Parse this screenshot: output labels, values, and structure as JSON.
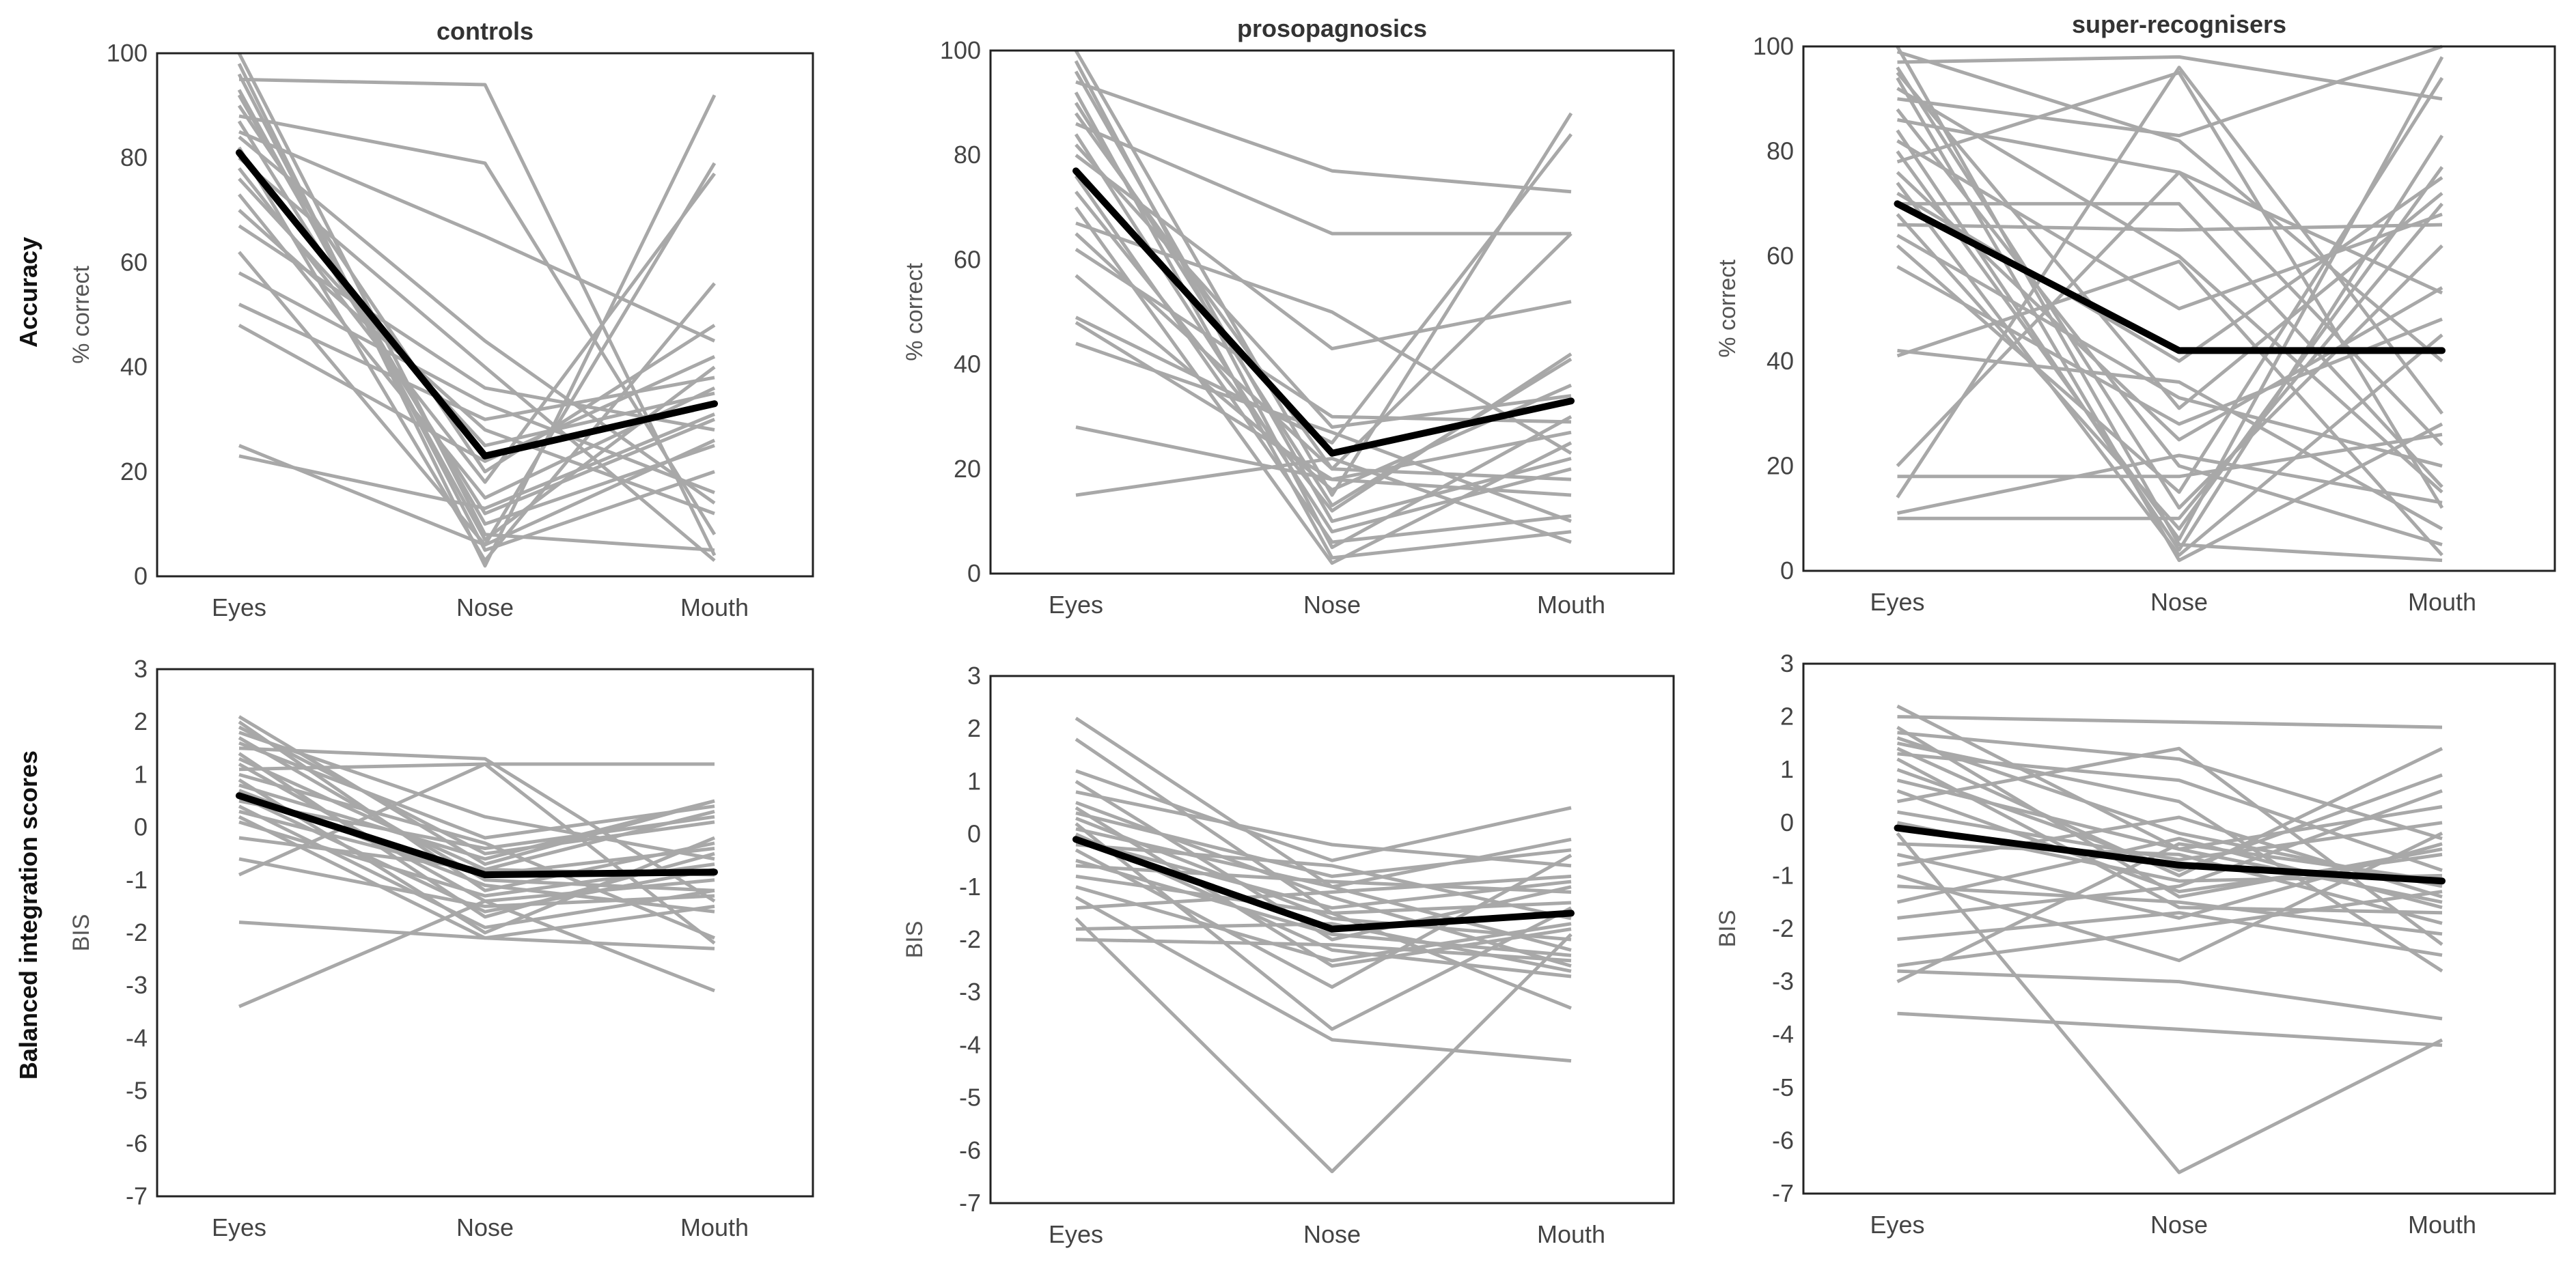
{
  "figure": {
    "row_labels": [
      "Accuracy",
      "Balanced integration scores"
    ],
    "colors": {
      "individual": "#a8a8a8",
      "mean": "#000000",
      "frame": "#222222"
    }
  },
  "chart_data": [
    {
      "type": "line",
      "group": "controls",
      "metric": "accuracy",
      "title": "controls",
      "xlabel": "",
      "ylabel": "% correct",
      "categories": [
        "Eyes",
        "Nose",
        "Mouth"
      ],
      "ylim": [
        0,
        100
      ],
      "yticks": [
        "0",
        "20",
        "40",
        "60",
        "80",
        "100"
      ],
      "mean": [
        81,
        23,
        33
      ],
      "individuals": [
        [
          100,
          8,
          5
        ],
        [
          98,
          2,
          92
        ],
        [
          96,
          5,
          20
        ],
        [
          95,
          94,
          4
        ],
        [
          93,
          7,
          40
        ],
        [
          92,
          10,
          25
        ],
        [
          90,
          20,
          48
        ],
        [
          88,
          79,
          8
        ],
        [
          87,
          12,
          30
        ],
        [
          85,
          65,
          45
        ],
        [
          84,
          45,
          14
        ],
        [
          82,
          3,
          56
        ],
        [
          80,
          40,
          3
        ],
        [
          78,
          18,
          77
        ],
        [
          76,
          25,
          35
        ],
        [
          73,
          15,
          36
        ],
        [
          70,
          28,
          12
        ],
        [
          67,
          36,
          28
        ],
        [
          62,
          6,
          79
        ],
        [
          58,
          33,
          16
        ],
        [
          52,
          30,
          38
        ],
        [
          48,
          22,
          42
        ],
        [
          25,
          6,
          26
        ],
        [
          23,
          13,
          31
        ]
      ]
    },
    {
      "type": "line",
      "group": "prosopagnosics",
      "metric": "accuracy",
      "title": "prosopagnosics",
      "xlabel": "",
      "ylabel": "% correct",
      "categories": [
        "Eyes",
        "Nose",
        "Mouth"
      ],
      "ylim": [
        0,
        100
      ],
      "yticks": [
        "0",
        "20",
        "40",
        "60",
        "80",
        "100"
      ],
      "mean": [
        77,
        23,
        33
      ],
      "individuals": [
        [
          100,
          15,
          88
        ],
        [
          98,
          5,
          30
        ],
        [
          96,
          10,
          22
        ],
        [
          94,
          77,
          73
        ],
        [
          92,
          3,
          8
        ],
        [
          90,
          13,
          41
        ],
        [
          88,
          20,
          65
        ],
        [
          86,
          65,
          65
        ],
        [
          84,
          8,
          20
        ],
        [
          82,
          28,
          34
        ],
        [
          80,
          43,
          52
        ],
        [
          76,
          6,
          11
        ],
        [
          73,
          12,
          42
        ],
        [
          70,
          2,
          25
        ],
        [
          67,
          50,
          23
        ],
        [
          65,
          20,
          18
        ],
        [
          62,
          30,
          29
        ],
        [
          57,
          16,
          36
        ],
        [
          49,
          25,
          84
        ],
        [
          48,
          18,
          15
        ],
        [
          44,
          27,
          10
        ],
        [
          28,
          18,
          27
        ],
        [
          15,
          22,
          6
        ]
      ]
    },
    {
      "type": "line",
      "group": "super-recognisers",
      "metric": "accuracy",
      "title": "super-recognisers",
      "xlabel": "",
      "ylabel": "% correct",
      "categories": [
        "Eyes",
        "Nose",
        "Mouth"
      ],
      "ylim": [
        0,
        100
      ],
      "yticks": [
        "0",
        "20",
        "40",
        "60",
        "80",
        "100"
      ],
      "mean": [
        70,
        42,
        42
      ],
      "individuals": [
        [
          100,
          5,
          2
        ],
        [
          99,
          82,
          40
        ],
        [
          97,
          98,
          90
        ],
        [
          96,
          12,
          62
        ],
        [
          95,
          31,
          72
        ],
        [
          94,
          2,
          28
        ],
        [
          92,
          60,
          15
        ],
        [
          90,
          83,
          100
        ],
        [
          88,
          20,
          5
        ],
        [
          86,
          76,
          24
        ],
        [
          84,
          4,
          83
        ],
        [
          82,
          50,
          68
        ],
        [
          80,
          6,
          98
        ],
        [
          78,
          95,
          12
        ],
        [
          76,
          25,
          54
        ],
        [
          74,
          3,
          45
        ],
        [
          72,
          40,
          75
        ],
        [
          70,
          70,
          16
        ],
        [
          68,
          8,
          77
        ],
        [
          66,
          65,
          66
        ],
        [
          64,
          33,
          20
        ],
        [
          62,
          15,
          94
        ],
        [
          58,
          28,
          48
        ],
        [
          42,
          36,
          8
        ],
        [
          41,
          59,
          3
        ],
        [
          20,
          76,
          53
        ],
        [
          18,
          18,
          26
        ],
        [
          14,
          96,
          30
        ],
        [
          11,
          22,
          13
        ],
        [
          10,
          10,
          70
        ]
      ]
    },
    {
      "type": "line",
      "group": "controls",
      "metric": "balanced integration scores",
      "title": "",
      "xlabel": "",
      "ylabel": "BIS",
      "categories": [
        "Eyes",
        "Nose",
        "Mouth"
      ],
      "ylim": [
        -7,
        3
      ],
      "yticks": [
        "-7",
        "-6",
        "-5",
        "-4",
        "-3",
        "-2",
        "-1",
        "0",
        "1",
        "2",
        "3"
      ],
      "mean": [
        0.6,
        -0.9,
        -0.85
      ],
      "individuals": [
        [
          2.1,
          -0.7,
          0.5
        ],
        [
          2.0,
          -1.2,
          -0.3
        ],
        [
          1.9,
          -0.5,
          0.1
        ],
        [
          1.8,
          0.2,
          -0.6
        ],
        [
          1.7,
          -1.0,
          -1.2
        ],
        [
          1.6,
          -0.2,
          0.4
        ],
        [
          1.5,
          1.3,
          -1.4
        ],
        [
          1.4,
          -1.7,
          -0.5
        ],
        [
          1.3,
          -0.8,
          0.3
        ],
        [
          1.2,
          -1.4,
          -1.0
        ],
        [
          1.1,
          1.2,
          1.2
        ],
        [
          1.0,
          -0.3,
          -2.1
        ],
        [
          0.9,
          -2.0,
          -0.2
        ],
        [
          0.8,
          -0.6,
          0.5
        ],
        [
          0.7,
          -1.1,
          -1.6
        ],
        [
          0.6,
          -1.6,
          -0.8
        ],
        [
          0.5,
          -0.4,
          0.2
        ],
        [
          0.4,
          -1.9,
          -1.2
        ],
        [
          0.3,
          -0.9,
          -0.4
        ],
        [
          0.2,
          -2.1,
          -1.5
        ],
        [
          0.1,
          -1.3,
          -0.7
        ],
        [
          -0.2,
          -0.8,
          -0.9
        ],
        [
          -0.6,
          -1.5,
          -1.3
        ],
        [
          -0.9,
          1.2,
          -2.2
        ],
        [
          -1.8,
          -2.1,
          -2.3
        ],
        [
          -3.4,
          -1.4,
          -3.1
        ]
      ]
    },
    {
      "type": "line",
      "group": "prosopagnosics",
      "metric": "balanced integration scores",
      "title": "",
      "xlabel": "",
      "ylabel": "BIS",
      "categories": [
        "Eyes",
        "Nose",
        "Mouth"
      ],
      "ylim": [
        -7,
        3
      ],
      "yticks": [
        "-7",
        "-6",
        "-5",
        "-4",
        "-3",
        "-2",
        "-1",
        "0",
        "1",
        "2",
        "3"
      ],
      "mean": [
        -0.1,
        -1.8,
        -1.5
      ],
      "individuals": [
        [
          2.2,
          -1.0,
          -2.2
        ],
        [
          1.8,
          -1.5,
          -1.3
        ],
        [
          1.2,
          -0.5,
          0.5
        ],
        [
          1.0,
          -2.0,
          -1.0
        ],
        [
          0.8,
          -0.2,
          -0.6
        ],
        [
          0.6,
          -1.2,
          -2.5
        ],
        [
          0.5,
          -2.5,
          -1.8
        ],
        [
          0.4,
          -0.8,
          -0.3
        ],
        [
          0.3,
          -1.6,
          -2.0
        ],
        [
          0.2,
          -3.7,
          -1.4
        ],
        [
          0.1,
          -1.0,
          -0.1
        ],
        [
          0.0,
          -2.2,
          -2.7
        ],
        [
          -0.1,
          -1.4,
          -0.9
        ],
        [
          -0.2,
          -0.6,
          -1.6
        ],
        [
          -0.3,
          -2.9,
          -0.4
        ],
        [
          -0.5,
          -1.9,
          -2.3
        ],
        [
          -0.6,
          -0.9,
          -1.1
        ],
        [
          -0.8,
          -1.5,
          -3.3
        ],
        [
          -1.0,
          -2.4,
          -1.7
        ],
        [
          -1.2,
          -3.9,
          -4.3
        ],
        [
          -1.4,
          -1.1,
          -0.8
        ],
        [
          -1.6,
          -6.4,
          -1.9
        ],
        [
          -1.8,
          -1.7,
          -2.6
        ],
        [
          -2.0,
          -2.1,
          -2.4
        ]
      ]
    },
    {
      "type": "line",
      "group": "super-recognisers",
      "metric": "balanced integration scores",
      "title": "",
      "xlabel": "",
      "ylabel": "BIS",
      "categories": [
        "Eyes",
        "Nose",
        "Mouth"
      ],
      "ylim": [
        -7,
        3
      ],
      "yticks": [
        "-7",
        "-6",
        "-5",
        "-4",
        "-3",
        "-2",
        "-1",
        "0",
        "1",
        "2",
        "3"
      ],
      "mean": [
        -0.1,
        -0.8,
        -1.1
      ],
      "individuals": [
        [
          2.2,
          -0.5,
          0.3
        ],
        [
          2.0,
          1.9,
          1.8
        ],
        [
          1.8,
          -1.4,
          -0.5
        ],
        [
          1.7,
          1.2,
          -0.3
        ],
        [
          1.6,
          -0.2,
          -1.2
        ],
        [
          1.5,
          0.4,
          -2.8
        ],
        [
          1.4,
          -1.0,
          1.4
        ],
        [
          1.3,
          0.8,
          -0.9
        ],
        [
          1.2,
          -1.6,
          -1.7
        ],
        [
          1.0,
          -0.9,
          0.9
        ],
        [
          0.8,
          -0.5,
          -1.5
        ],
        [
          0.6,
          -1.3,
          -0.6
        ],
        [
          0.4,
          1.4,
          -2.3
        ],
        [
          0.2,
          -0.7,
          0.0
        ],
        [
          0.0,
          -1.1,
          -1.0
        ],
        [
          -0.2,
          -6.6,
          -4.1
        ],
        [
          -0.4,
          -0.6,
          -1.9
        ],
        [
          -0.6,
          -1.8,
          -0.4
        ],
        [
          -0.8,
          0.1,
          -1.4
        ],
        [
          -1.0,
          -2.6,
          -0.2
        ],
        [
          -1.2,
          -1.5,
          -2.1
        ],
        [
          -1.5,
          -0.3,
          -1.6
        ],
        [
          -1.8,
          -1.2,
          0.6
        ],
        [
          -2.2,
          -1.7,
          -2.5
        ],
        [
          -2.7,
          -2.0,
          -1.3
        ],
        [
          -2.8,
          -3.0,
          -3.7
        ],
        [
          -3.0,
          -0.4,
          -1.1
        ],
        [
          -3.6,
          -3.9,
          -4.2
        ]
      ]
    }
  ]
}
